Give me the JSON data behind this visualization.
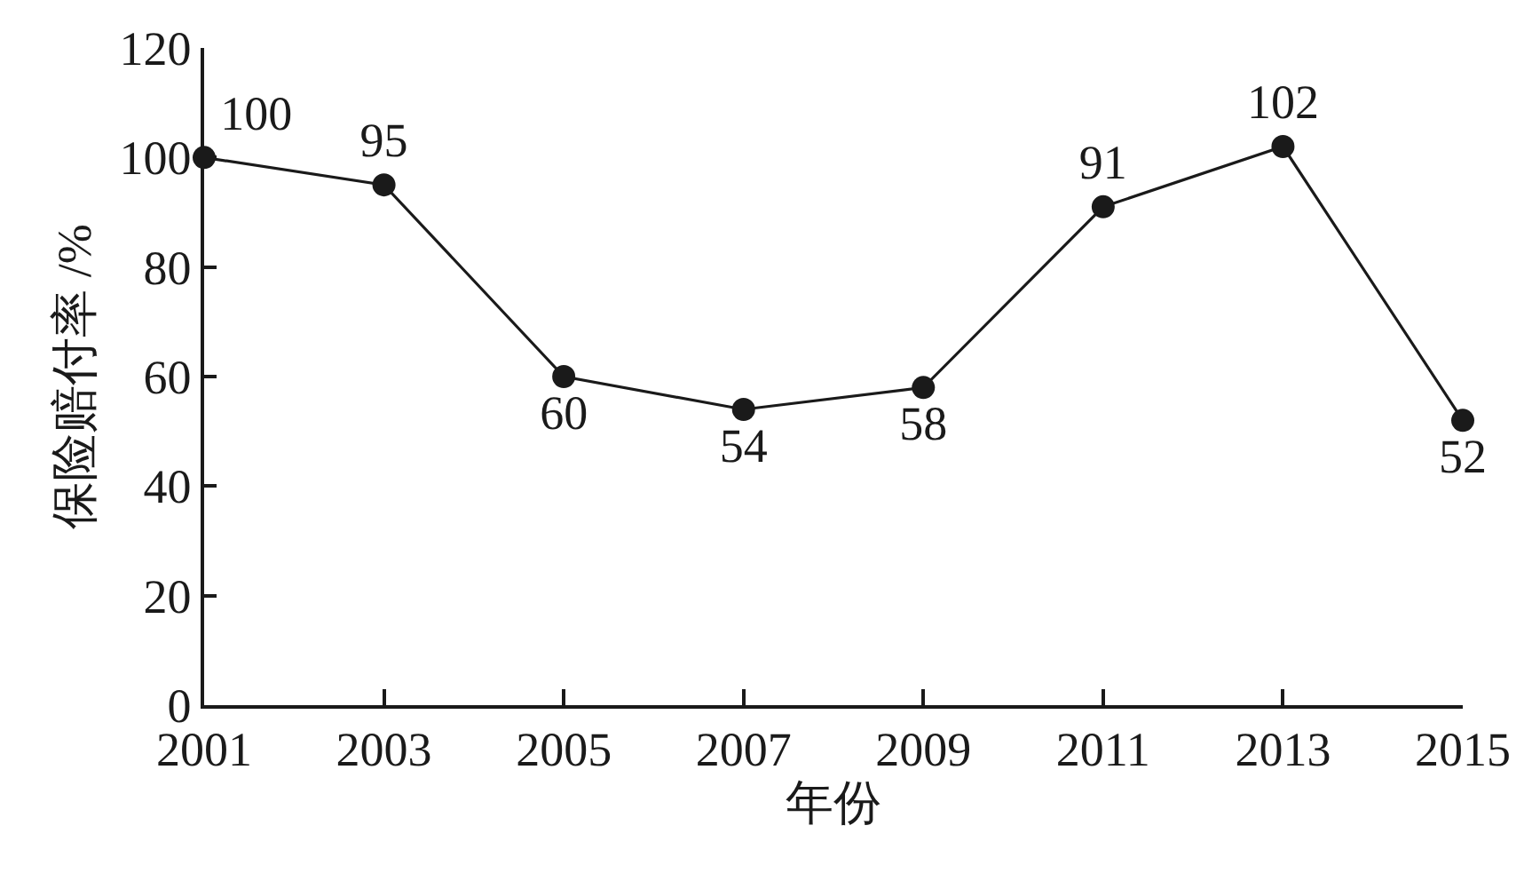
{
  "chart_data": {
    "type": "line",
    "xlabel": "年份",
    "ylabel": "保险赔付率 /%",
    "x": [
      2001,
      2003,
      2005,
      2007,
      2009,
      2011,
      2013,
      2015
    ],
    "values": [
      100,
      95,
      60,
      54,
      58,
      91,
      102,
      52
    ],
    "color": "#1a1a1a",
    "marker": "circle",
    "line_style": "solid",
    "data_labels": true,
    "xlim": [
      2001,
      2015
    ],
    "xticks": [
      2001,
      2003,
      2005,
      2007,
      2009,
      2011,
      2013,
      2015
    ],
    "ylim": [
      0,
      120
    ],
    "yticks": [
      0,
      20,
      40,
      60,
      80,
      100,
      120
    ]
  }
}
